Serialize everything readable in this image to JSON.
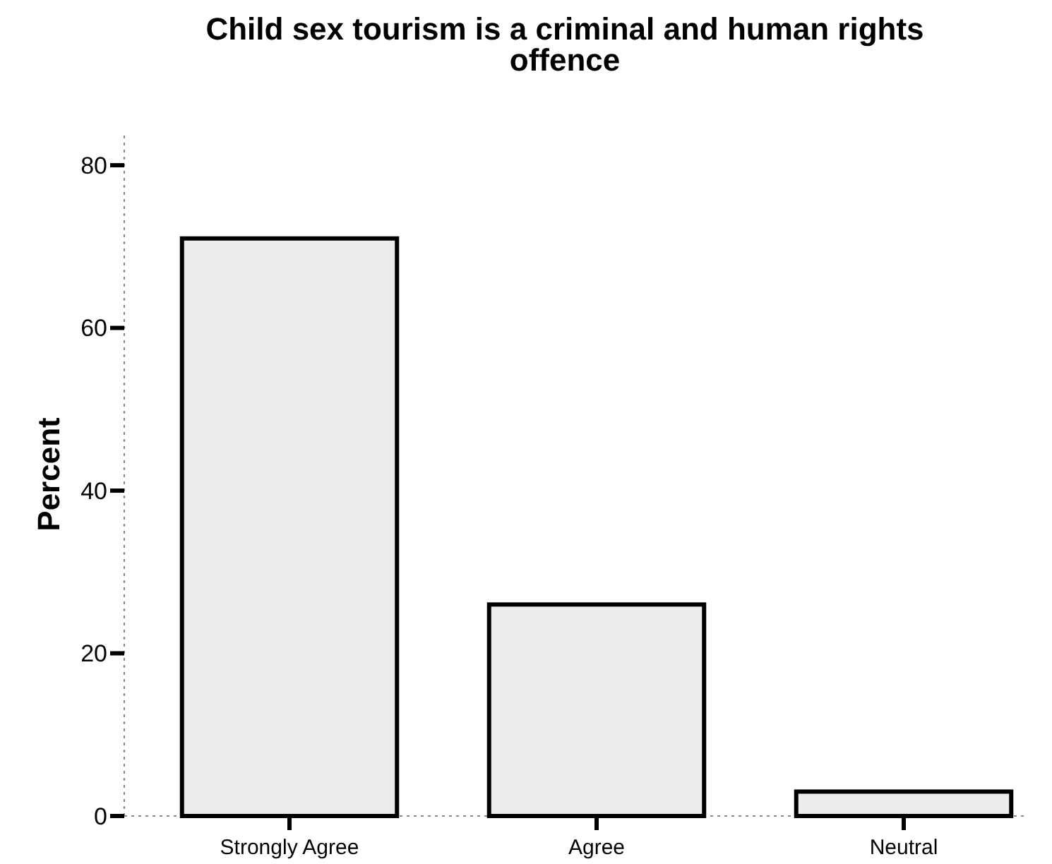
{
  "chart_data": {
    "type": "bar",
    "title": "Child sex tourism is a criminal and human rights offence",
    "ylabel": "Percent",
    "categories": [
      "Strongly Agree",
      "Agree",
      "Neutral"
    ],
    "values": [
      71,
      26,
      3
    ],
    "color": "#ececec",
    "ylim": [
      0,
      84
    ],
    "yticks": [
      0,
      20,
      40,
      60,
      80
    ],
    "grid": false
  }
}
